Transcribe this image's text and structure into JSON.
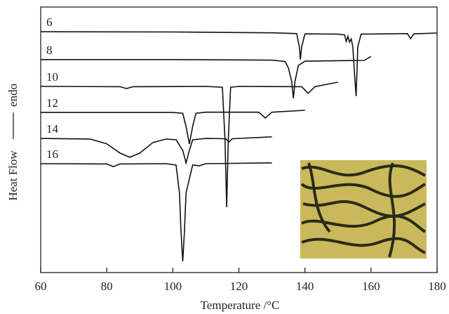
{
  "chart_data": {
    "type": "line",
    "xlabel": "Temperature /°C",
    "ylabel": "Heat Flow",
    "ylabel_direction": "endo",
    "xlim": [
      60,
      180
    ],
    "xticks": [
      60,
      80,
      100,
      120,
      140,
      160,
      180
    ],
    "ylim": [
      0,
      100
    ],
    "color": "#111111",
    "series": [
      {
        "name": "6",
        "x": [
          60,
          100,
          130,
          137.5,
          138.3,
          138.6,
          139,
          140,
          150,
          152,
          152.5,
          153,
          153.5,
          154,
          154.5,
          155,
          155.5,
          156,
          157,
          165,
          171,
          172,
          173,
          180
        ],
        "values": [
          90.7,
          90.6,
          90.3,
          90.0,
          85,
          80.2,
          85,
          89.9,
          89.8,
          89.5,
          87,
          89,
          86.8,
          88,
          85,
          75,
          66.4,
          85,
          89.8,
          89.9,
          90,
          88.1,
          89.9,
          90.2
        ]
      },
      {
        "name": "8",
        "x": [
          60,
          100,
          130,
          134,
          135,
          136,
          136.5,
          137,
          138,
          140,
          150,
          158,
          160
        ],
        "values": [
          80.2,
          80.2,
          80.0,
          79.5,
          77,
          72,
          65.6,
          72,
          78,
          79.6,
          79.8,
          79.9,
          81.4
        ]
      },
      {
        "name": "10",
        "x": [
          60,
          84,
          86,
          88,
          110,
          115,
          115.8,
          116.3,
          116.8,
          117.5,
          120,
          139,
          141,
          143,
          150
        ],
        "values": [
          70.1,
          70.0,
          69.3,
          70.0,
          70.1,
          69.8,
          50,
          24.6,
          50,
          69.8,
          70.1,
          70.0,
          67.5,
          70.0,
          71.7
        ]
      },
      {
        "name": "12",
        "x": [
          60,
          100,
          103,
          104,
          105,
          106,
          107,
          110,
          126,
          128,
          130,
          140
        ],
        "values": [
          60.3,
          60.3,
          60.0,
          55,
          48.4,
          55,
          60,
          60.4,
          60.4,
          58.2,
          60.4,
          61.1
        ]
      },
      {
        "name": "14",
        "x": [
          60,
          75,
          80,
          84,
          87,
          90,
          94,
          98,
          101,
          103,
          104,
          105,
          106,
          110,
          116,
          117,
          118,
          130
        ],
        "values": [
          50.5,
          50.3,
          48.5,
          45,
          43.4,
          45,
          49,
          50.3,
          50.0,
          46,
          41.3,
          46,
          50,
          50.5,
          50.4,
          49.2,
          50.4,
          51.1
        ]
      },
      {
        "name": "16",
        "x": [
          60,
          80,
          82,
          84,
          98,
          101,
          102,
          102.5,
          103,
          103.5,
          104,
          106,
          108,
          110,
          130
        ],
        "values": [
          41.0,
          40.9,
          39.9,
          40.9,
          41.0,
          40.5,
          30,
          15,
          4.2,
          15,
          30,
          40.5,
          40.2,
          41.0,
          41.3
        ]
      }
    ]
  }
}
